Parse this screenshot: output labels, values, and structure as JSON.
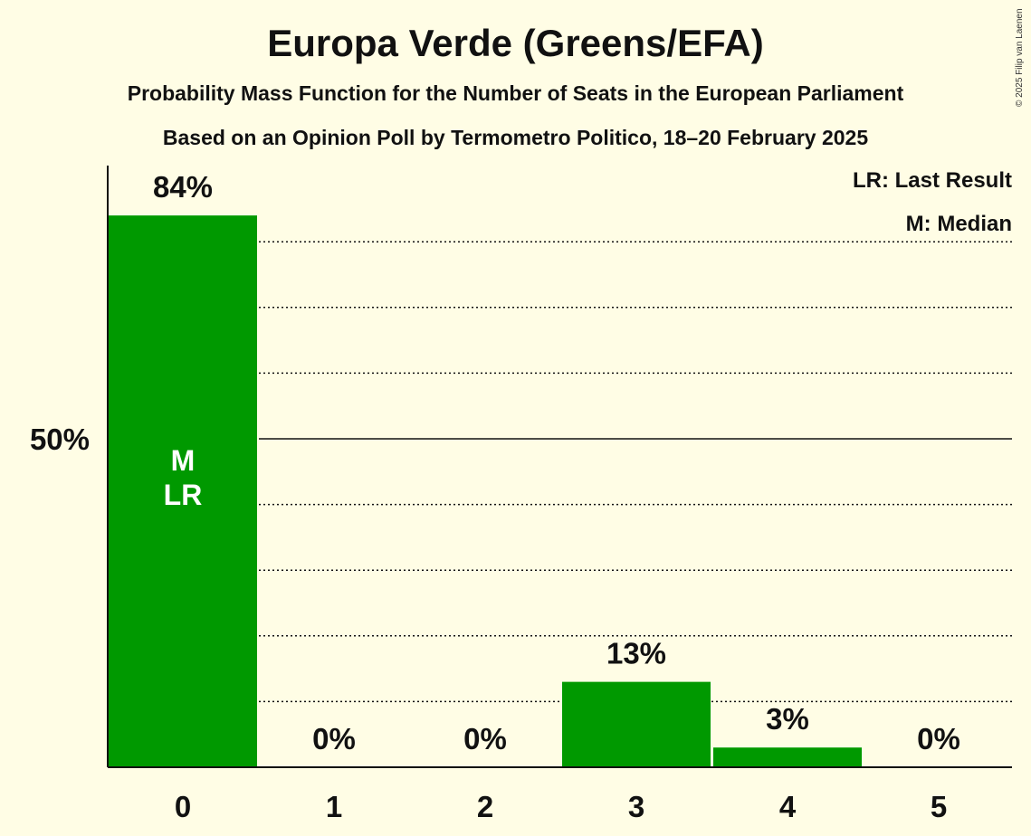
{
  "title": "Europa Verde (Greens/EFA)",
  "subtitle1": "Probability Mass Function for the Number of Seats in the European Parliament",
  "subtitle2": "Based on an Opinion Poll by Termometro Politico, 18–20 February 2025",
  "copyright": "© 2025 Filip van Laenen",
  "legend": {
    "lr": "LR: Last Result",
    "m": "M: Median"
  },
  "colors": {
    "bar": "#009900",
    "background": "#fffde5"
  },
  "chart_data": {
    "type": "bar",
    "categories": [
      "0",
      "1",
      "2",
      "3",
      "4",
      "5"
    ],
    "values": [
      84,
      0,
      0,
      13,
      3,
      0
    ],
    "labels": [
      "84%",
      "0%",
      "0%",
      "13%",
      "3%",
      "0%"
    ],
    "ylim": [
      0,
      100
    ],
    "yticks": [
      {
        "value": 50,
        "label": "50%"
      }
    ],
    "gridlines": [
      10,
      20,
      30,
      40,
      50,
      60,
      70,
      80
    ],
    "bar_annotations": [
      {
        "category": "0",
        "lines": [
          "M",
          "LR"
        ]
      }
    ],
    "legend_placement": "top-right"
  }
}
